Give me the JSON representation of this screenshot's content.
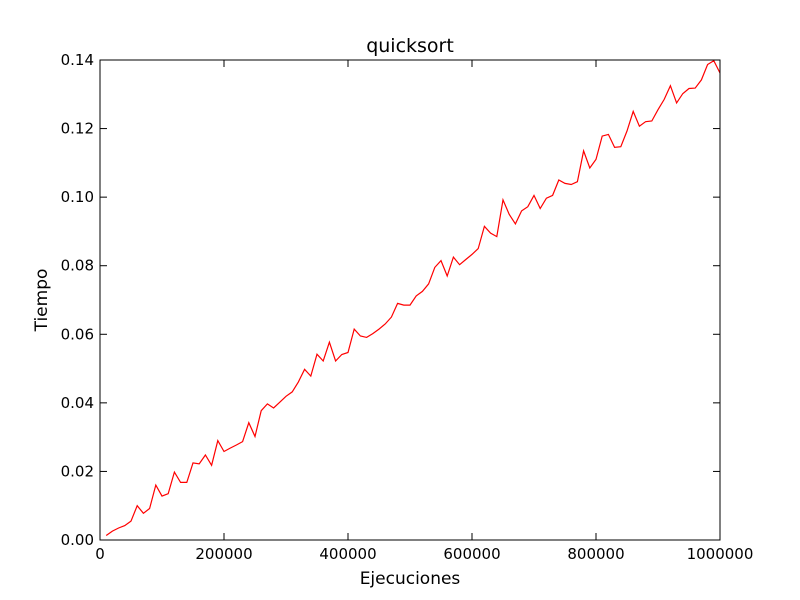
{
  "chart_data": {
    "type": "line",
    "title": "quicksort",
    "xlabel": "Ejecuciones",
    "ylabel": "Tiempo",
    "xlim": [
      0,
      1000000
    ],
    "ylim": [
      0,
      0.14
    ],
    "xticks": [
      0,
      200000,
      400000,
      600000,
      800000,
      1000000
    ],
    "xtick_labels": [
      "0",
      "200000",
      "400000",
      "600000",
      "800000",
      "1000000"
    ],
    "yticks": [
      0,
      0.02,
      0.04,
      0.06,
      0.08,
      0.1,
      0.12,
      0.14
    ],
    "ytick_labels": [
      "0.00",
      "0.02",
      "0.04",
      "0.06",
      "0.08",
      "0.10",
      "0.12",
      "0.14"
    ],
    "grid": false,
    "series": [
      {
        "color": "#ff0000",
        "x": [
          10000,
          20000,
          30000,
          40000,
          50000,
          60000,
          70000,
          80000,
          90000,
          100000,
          110000,
          120000,
          130000,
          140000,
          150000,
          160000,
          170000,
          180000,
          190000,
          200000,
          210000,
          220000,
          230000,
          240000,
          250000,
          260000,
          270000,
          280000,
          290000,
          300000,
          310000,
          320000,
          330000,
          340000,
          350000,
          360000,
          370000,
          380000,
          390000,
          400000,
          410000,
          420000,
          430000,
          440000,
          450000,
          460000,
          470000,
          480000,
          490000,
          500000,
          510000,
          520000,
          530000,
          540000,
          550000,
          560000,
          570000,
          580000,
          590000,
          600000,
          610000,
          620000,
          630000,
          640000,
          650000,
          660000,
          670000,
          680000,
          690000,
          700000,
          710000,
          720000,
          730000,
          740000,
          750000,
          760000,
          770000,
          780000,
          790000,
          800000,
          810000,
          820000,
          830000,
          840000,
          850000,
          860000,
          870000,
          880000,
          890000,
          900000,
          910000,
          920000,
          930000,
          940000,
          950000,
          960000,
          970000,
          980000,
          990000,
          1000000
        ],
        "y": [
          0.0013,
          0.0026,
          0.0035,
          0.0042,
          0.0055,
          0.01,
          0.0078,
          0.0092,
          0.016,
          0.0128,
          0.0135,
          0.0198,
          0.0168,
          0.0168,
          0.0225,
          0.0222,
          0.0248,
          0.0218,
          0.029,
          0.0258,
          0.0268,
          0.0277,
          0.0287,
          0.0342,
          0.0302,
          0.0377,
          0.0397,
          0.0385,
          0.0402,
          0.0419,
          0.0432,
          0.0461,
          0.0498,
          0.0478,
          0.0542,
          0.0522,
          0.0577,
          0.0522,
          0.0541,
          0.0547,
          0.0615,
          0.0595,
          0.0591,
          0.0602,
          0.0615,
          0.063,
          0.065,
          0.069,
          0.0685,
          0.0685,
          0.0712,
          0.0725,
          0.0747,
          0.0795,
          0.0815,
          0.077,
          0.0825,
          0.0803,
          0.0818,
          0.0833,
          0.085,
          0.0915,
          0.0895,
          0.0885,
          0.0992,
          0.095,
          0.0922,
          0.096,
          0.0972,
          0.1005,
          0.0967,
          0.0997,
          0.1005,
          0.105,
          0.104,
          0.1037,
          0.1045,
          0.1135,
          0.1085,
          0.111,
          0.1178,
          0.1183,
          0.1145,
          0.1147,
          0.1193,
          0.125,
          0.1207,
          0.122,
          0.1222,
          0.1255,
          0.1285,
          0.1325,
          0.1275,
          0.1302,
          0.1317,
          0.1318,
          0.1342,
          0.1387,
          0.1398,
          0.1362
        ]
      }
    ]
  }
}
